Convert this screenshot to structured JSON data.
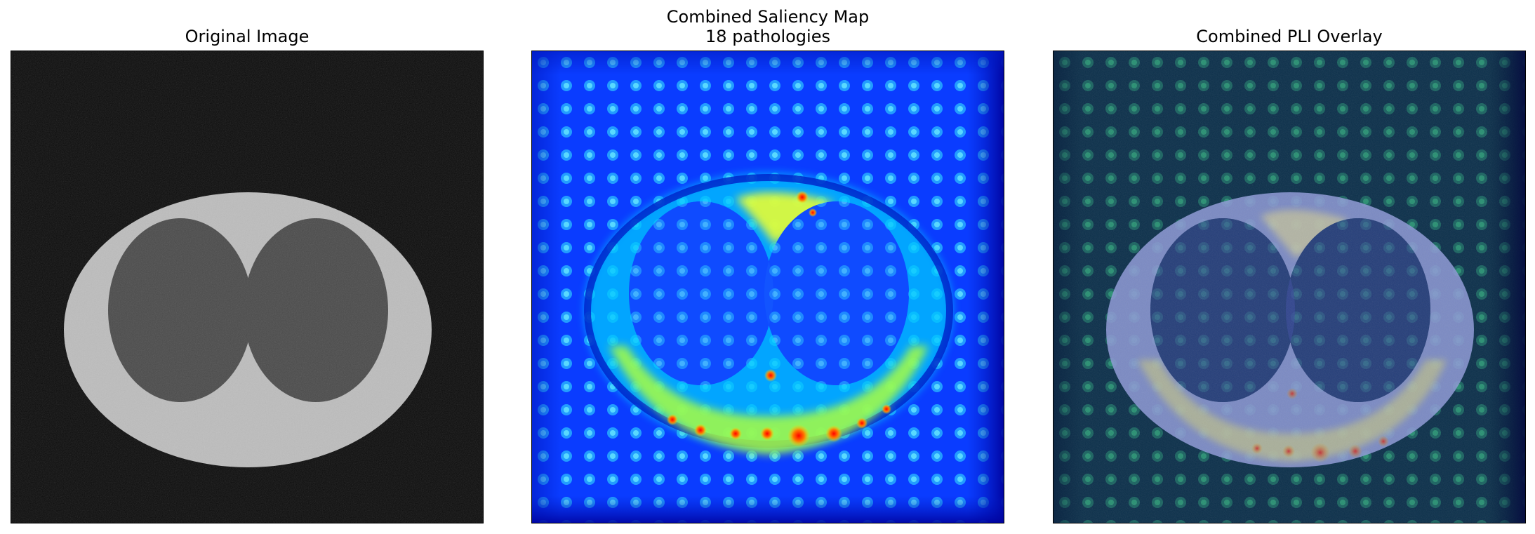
{
  "panels": [
    {
      "title_lines": [
        "Original Image"
      ]
    },
    {
      "title_lines": [
        "Combined Saliency Map",
        "18 pathologies"
      ]
    },
    {
      "title_lines": [
        "Combined PLI Overlay"
      ]
    }
  ],
  "colors": {
    "background": "#ffffff",
    "image_black": "#0b0b0b",
    "image_gray_light": "#bdbdbd",
    "image_gray_dark": "#4a4a4a",
    "jet_blue": "#0038ff",
    "jet_cyan": "#00d9ff",
    "jet_yellow": "#ffe000",
    "jet_red": "#d00000",
    "overlay_teal": "#0b3a4e"
  },
  "icons": []
}
